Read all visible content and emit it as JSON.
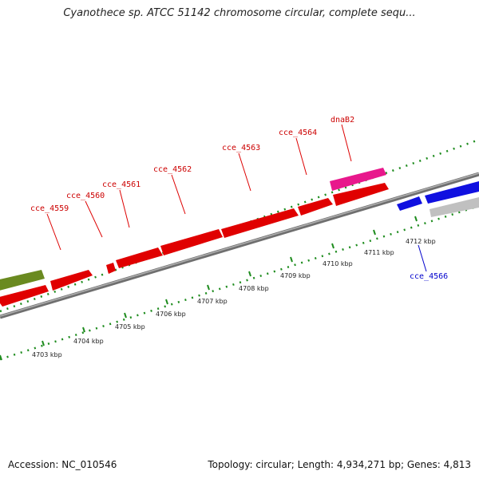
{
  "header": {
    "title": "Cyanothece sp. ATCC 51142 chromosome circular, complete sequ..."
  },
  "footer": {
    "accession": "Accession: NC_010546",
    "summary": "Topology: circular; Length: 4,934,271 bp; Genes: 4,813"
  },
  "colors": {
    "forward_gene": "#e00000",
    "reverse_gene": "#1010e0",
    "trna_gene": "#e8188c",
    "other_gene": "#6a8a20",
    "pseudo_gene": "#b8b8b8",
    "backbone": "#888888",
    "ticks": "#1e8c1e",
    "forward_label": "#cc0000",
    "reverse_label": "#0000cc"
  },
  "gene_labels": [
    {
      "id": "cce_4559",
      "text": "cce_4559",
      "strand": "forward"
    },
    {
      "id": "cce_4560",
      "text": "cce_4560",
      "strand": "forward"
    },
    {
      "id": "cce_4561",
      "text": "cce_4561",
      "strand": "forward"
    },
    {
      "id": "cce_4562",
      "text": "cce_4562",
      "strand": "forward"
    },
    {
      "id": "cce_4563",
      "text": "cce_4563",
      "strand": "forward"
    },
    {
      "id": "cce_4564",
      "text": "cce_4564",
      "strand": "forward"
    },
    {
      "id": "dnaB2",
      "text": "dnaB2",
      "strand": "forward"
    },
    {
      "id": "cce_4566",
      "text": "cce_4566",
      "strand": "reverse"
    }
  ],
  "position_labels": [
    "4703 kbp",
    "4704 kbp",
    "4705 kbp",
    "4706 kbp",
    "4707 kbp",
    "4708 kbp",
    "4709 kbp",
    "4710 kbp",
    "4711 kbp",
    "4712 kbp"
  ]
}
